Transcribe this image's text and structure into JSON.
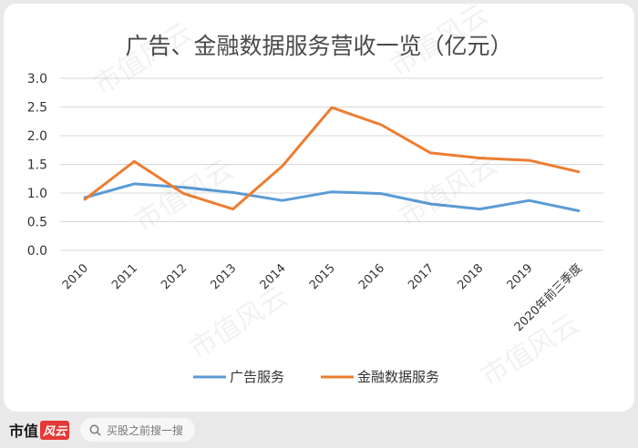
{
  "watermark": "市值风云",
  "chart_data": {
    "type": "line",
    "title": "广告、金融数据服务营收一览（亿元）",
    "xlabel": "",
    "ylabel": "",
    "categories": [
      "2010",
      "2011",
      "2012",
      "2013",
      "2014",
      "2015",
      "2016",
      "2017",
      "2018",
      "2019",
      "2020年前三季度"
    ],
    "ylim": [
      0,
      3.0
    ],
    "yticks": [
      "0.0",
      "0.5",
      "1.0",
      "1.5",
      "2.0",
      "2.5",
      "3.0"
    ],
    "grid": true,
    "legend_position": "bottom",
    "series": [
      {
        "name": "广告服务",
        "color": "#5b9bd5",
        "values": [
          0.92,
          1.16,
          1.1,
          1.01,
          0.87,
          1.02,
          0.99,
          0.81,
          0.72,
          0.87,
          0.69
        ]
      },
      {
        "name": "金融数据服务",
        "color": "#ed7d31",
        "values": [
          0.89,
          1.55,
          0.99,
          0.72,
          1.47,
          2.49,
          2.19,
          1.7,
          1.61,
          1.57,
          1.37
        ]
      }
    ]
  },
  "footer": {
    "brand_text": "市值",
    "brand_mark": "风云",
    "search_placeholder": "买股之前搜一搜",
    "search_icon": "search-icon"
  }
}
